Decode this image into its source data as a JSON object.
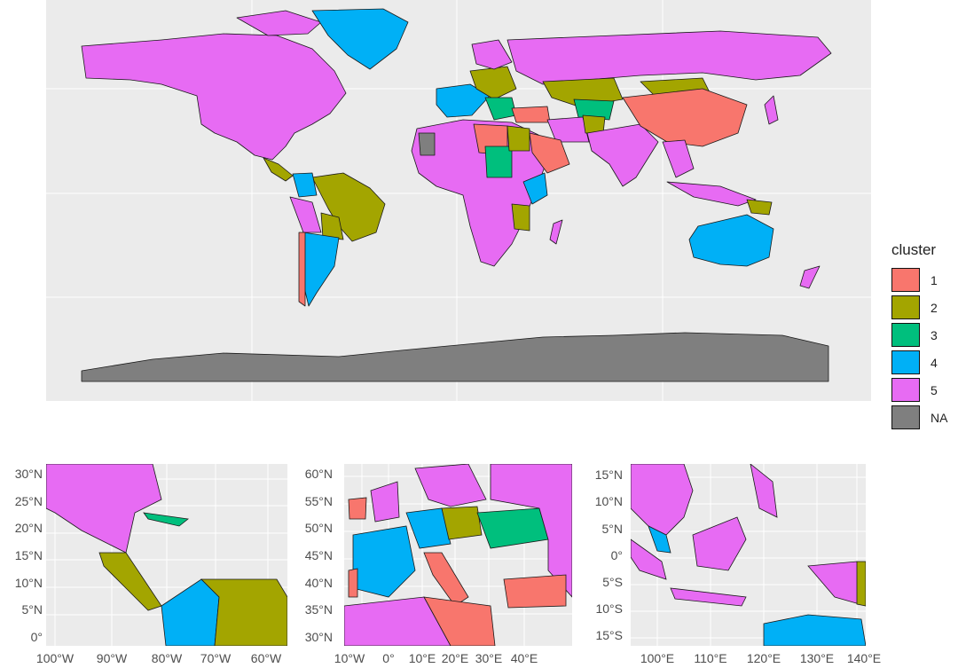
{
  "palette": {
    "c1": "#F8766D",
    "c2": "#A3A500",
    "c3": "#00BF7D",
    "c4": "#00B0F6",
    "c5": "#E76BF3",
    "na": "#7F7F7F",
    "ocean": "#EBEBEB",
    "grid": "#FFFFFF"
  },
  "legend": {
    "title": "cluster",
    "items": [
      {
        "label": "1",
        "color": "#F8766D"
      },
      {
        "label": "2",
        "color": "#A3A500"
      },
      {
        "label": "3",
        "color": "#00BF7D"
      },
      {
        "label": "4",
        "color": "#00B0F6"
      },
      {
        "label": "5",
        "color": "#E76BF3"
      },
      {
        "label": "NA",
        "color": "#7F7F7F"
      }
    ]
  },
  "insets": [
    {
      "name": "caribbean",
      "y_ticks": [
        "30°N",
        "25°N",
        "20°N",
        "15°N",
        "10°N",
        "5°N",
        "0°"
      ],
      "x_ticks": [
        "100°W",
        "90°W",
        "80°W",
        "70°W",
        "60°W"
      ]
    },
    {
      "name": "europe",
      "y_ticks": [
        "60°N",
        "55°N",
        "50°N",
        "45°N",
        "40°N",
        "35°N",
        "30°N"
      ],
      "x_ticks": [
        "10°W",
        "0°",
        "10°E",
        "20°E",
        "30°E",
        "40°E"
      ]
    },
    {
      "name": "southeast-asia",
      "y_ticks": [
        "15°N",
        "10°N",
        "5°N",
        "0°",
        "5°S",
        "10°S",
        "15°S"
      ],
      "x_ticks": [
        "100°E",
        "110°E",
        "120°E",
        "130°E",
        "140°E"
      ]
    }
  ]
}
